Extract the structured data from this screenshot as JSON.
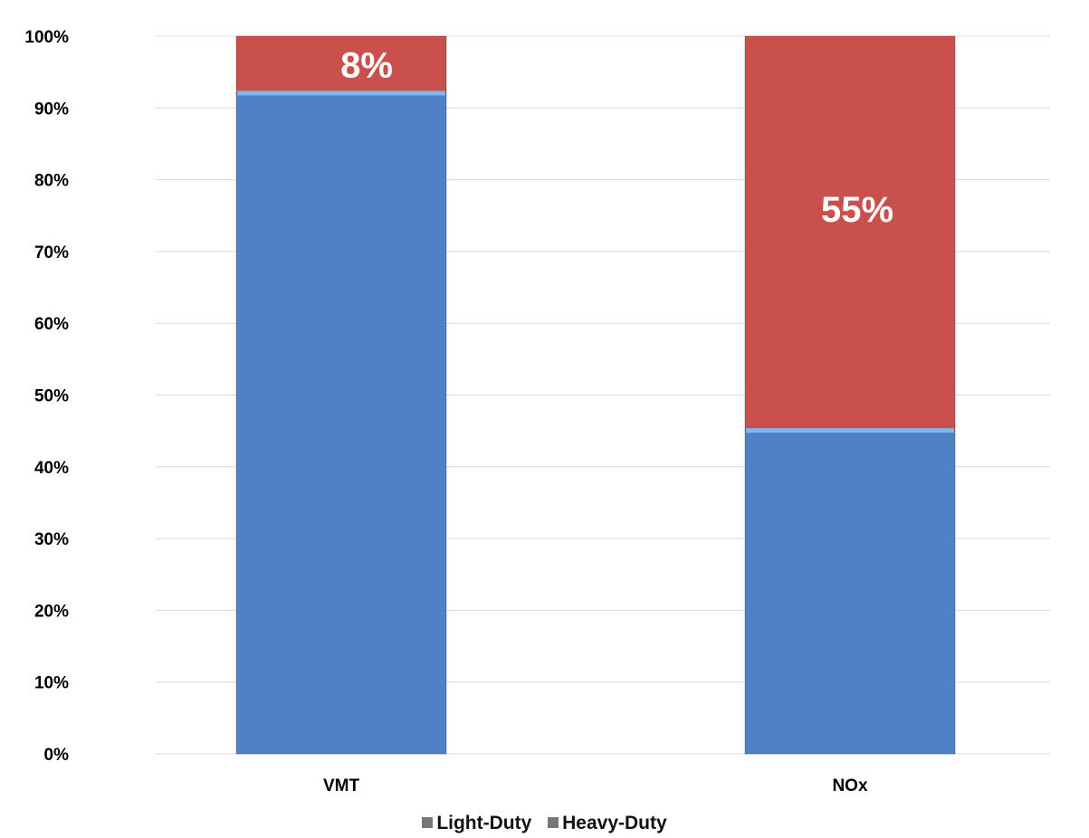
{
  "chart_data": {
    "type": "bar",
    "stacked": true,
    "categories": [
      "VMT",
      "NOx"
    ],
    "series": [
      {
        "name": "Light-Duty",
        "values": [
          92,
          45
        ],
        "color": "#4f81c7"
      },
      {
        "name": "Heavy-Duty",
        "values": [
          8,
          55
        ],
        "color": "#c9504c"
      }
    ],
    "data_labels": [
      {
        "series": 1,
        "category": 0,
        "text": "8%"
      },
      {
        "series": 1,
        "category": 1,
        "text": "55%"
      }
    ],
    "ylim": [
      0,
      100
    ],
    "yticks": [
      "0%",
      "10%",
      "20%",
      "30%",
      "40%",
      "50%",
      "60%",
      "70%",
      "80%",
      "90%",
      "100%"
    ],
    "grid": true,
    "legend_position": "bottom"
  }
}
